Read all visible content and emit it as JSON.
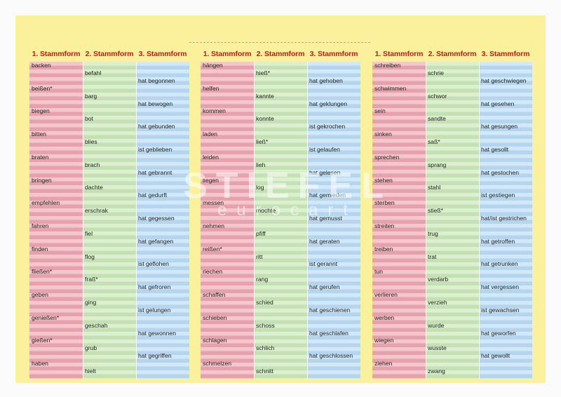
{
  "headers": [
    "1. Stammform",
    "2. Stammform",
    "3. Stammform"
  ],
  "panels": [
    {
      "rows": [
        {
          "s1": "backen"
        },
        {
          "s2": "befahl"
        },
        {
          "s3": "hat begonnen"
        },
        {
          "s1": "beißen*"
        },
        {
          "s2": "barg"
        },
        {
          "s3": "hat bewogen"
        },
        {
          "s1": "biegen"
        },
        {
          "s2": "bot"
        },
        {
          "s3": "hat gebunden"
        },
        {
          "s1": "bitten"
        },
        {
          "s2": "blies"
        },
        {
          "s3": "ist geblieben"
        },
        {
          "s1": "braten"
        },
        {
          "s2": "brach"
        },
        {
          "s3": "hat gebrannt"
        },
        {
          "s1": "bringen"
        },
        {
          "s2": "dachte"
        },
        {
          "s3": "hat gedurft"
        },
        {
          "s1": "empfehlen"
        },
        {
          "s2": "erschrak"
        },
        {
          "s3": "hat gegessen"
        },
        {
          "s1": "fahren"
        },
        {
          "s2": "fiel"
        },
        {
          "s3": "hat gefangen"
        },
        {
          "s1": "finden"
        },
        {
          "s2": "flog"
        },
        {
          "s3": "ist geflohen"
        },
        {
          "s1": "fließen*"
        },
        {
          "s2": "fraß*"
        },
        {
          "s3": "hat gefroren"
        },
        {
          "s1": "geben"
        },
        {
          "s2": "ging"
        },
        {
          "s3": "ist gelungen"
        },
        {
          "s1": "genießen*"
        },
        {
          "s2": "geschah"
        },
        {
          "s3": "hat gewonnen"
        },
        {
          "s1": "gießen*"
        },
        {
          "s2": "grub"
        },
        {
          "s3": "hat gegriffen"
        },
        {
          "s1": "haben"
        },
        {
          "s2": "hielt"
        }
      ]
    },
    {
      "rows": [
        {
          "s1": "hängen"
        },
        {
          "s2": "hieß*"
        },
        {
          "s3": "hat gehoben"
        },
        {
          "s1": "helfen"
        },
        {
          "s2": "kannte"
        },
        {
          "s3": "hat geklungen"
        },
        {
          "s1": "kommen"
        },
        {
          "s2": "konnte"
        },
        {
          "s3": "ist gekrochen"
        },
        {
          "s1": "laden"
        },
        {
          "s2": "ließ*"
        },
        {
          "s3": "ist gelaufen"
        },
        {
          "s1": "leiden"
        },
        {
          "s2": "lieh"
        },
        {
          "s3": "hat gelesen"
        },
        {
          "s1": "liegen"
        },
        {
          "s2": "log"
        },
        {
          "s3": "hat gemieden"
        },
        {
          "s1": "messen"
        },
        {
          "s2": "mochte"
        },
        {
          "s3": "hat gemusst"
        },
        {
          "s1": "nehmen"
        },
        {
          "s2": "pfiff"
        },
        {
          "s3": "hat geraten"
        },
        {
          "s1": "reißen*"
        },
        {
          "s2": "ritt"
        },
        {
          "s3": "ist gerannt"
        },
        {
          "s1": "riechen"
        },
        {
          "s2": "rang"
        },
        {
          "s3": "hat gerufen"
        },
        {
          "s1": "schaffen"
        },
        {
          "s2": "schied"
        },
        {
          "s3": "hat geschienen"
        },
        {
          "s1": "schieben"
        },
        {
          "s2": "schoss"
        },
        {
          "s3": "hat geschlafen"
        },
        {
          "s1": "schlagen"
        },
        {
          "s2": "schlich"
        },
        {
          "s3": "hat geschlossen"
        },
        {
          "s1": "schmelzen"
        },
        {
          "s2": "schnitt"
        }
      ]
    },
    {
      "rows": [
        {
          "s1": "schreiben"
        },
        {
          "s2": "schrie"
        },
        {
          "s3": "hat geschwiegen"
        },
        {
          "s1": "schwimmen"
        },
        {
          "s2": "schwor"
        },
        {
          "s3": "hat gesehen"
        },
        {
          "s1": "sein"
        },
        {
          "s2": "sandte"
        },
        {
          "s3": "hat gesungen"
        },
        {
          "s1": "sinken"
        },
        {
          "s2": "saß*"
        },
        {
          "s3": "hat gesollt"
        },
        {
          "s1": "sprechen"
        },
        {
          "s2": "sprang"
        },
        {
          "s3": "hat gestochen"
        },
        {
          "s1": "stehen"
        },
        {
          "s2": "stahl"
        },
        {
          "s3": "ist gestiegen"
        },
        {
          "s1": "sterben"
        },
        {
          "s2": "stieß*"
        },
        {
          "s3": "hat/ist gestrichen"
        },
        {
          "s1": "streiten"
        },
        {
          "s2": "trug"
        },
        {
          "s3": "hat getroffen"
        },
        {
          "s1": "treiben"
        },
        {
          "s2": "trat"
        },
        {
          "s3": "hat getrunken"
        },
        {
          "s1": "tun"
        },
        {
          "s2": "verdarb"
        },
        {
          "s3": "hat vergessen"
        },
        {
          "s1": "verlieren"
        },
        {
          "s2": "verzieh"
        },
        {
          "s3": "ist gewachsen"
        },
        {
          "s1": "werben"
        },
        {
          "s2": "wurde"
        },
        {
          "s3": "hat geworfen"
        },
        {
          "s1": "wiegen"
        },
        {
          "s2": "wusste"
        },
        {
          "s3": "hat gewollt"
        },
        {
          "s1": "ziehen"
        },
        {
          "s2": "zwang"
        }
      ]
    }
  ],
  "watermark": {
    "line1": "STIEFEL",
    "line2": "eurocart"
  }
}
